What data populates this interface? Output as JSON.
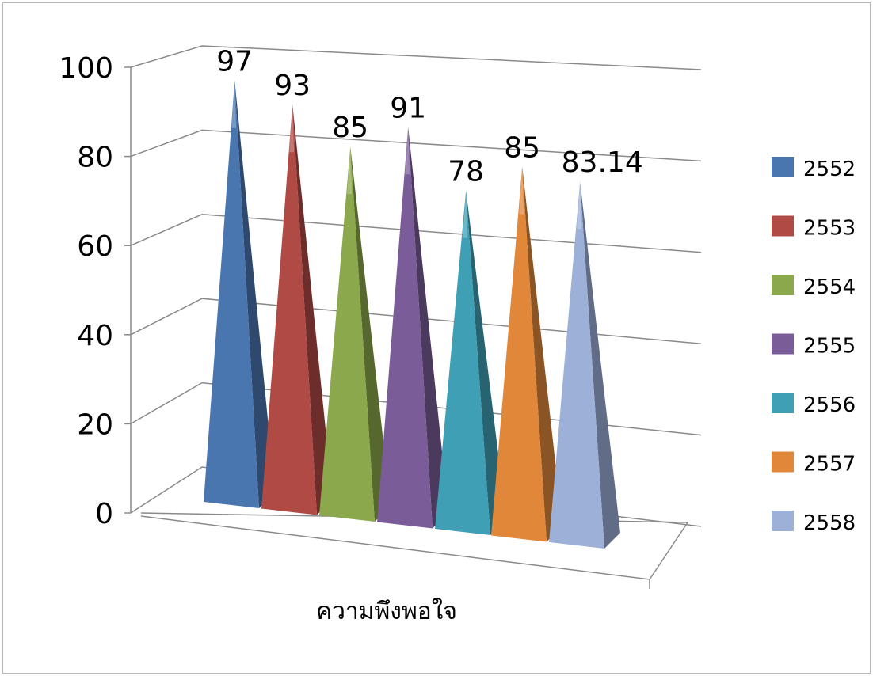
{
  "chart_data": {
    "type": "bar",
    "variant": "3d-pyramid",
    "categories": [
      "ความพึงพอใจ"
    ],
    "series": [
      {
        "name": "2552",
        "values": [
          97
        ],
        "label": "97",
        "color": "#4a76b0"
      },
      {
        "name": "2553",
        "values": [
          93
        ],
        "label": "93",
        "color": "#b04a45"
      },
      {
        "name": "2554",
        "values": [
          85
        ],
        "label": "85",
        "color": "#8ca84c"
      },
      {
        "name": "2555",
        "values": [
          91
        ],
        "label": "91",
        "color": "#7a5c98"
      },
      {
        "name": "2556",
        "values": [
          78
        ],
        "label": "78",
        "color": "#3f9fb4"
      },
      {
        "name": "2557",
        "values": [
          85
        ],
        "label": "85",
        "color": "#e0873a"
      },
      {
        "name": "2558",
        "values": [
          83.14
        ],
        "label": "83.14",
        "color": "#9db0d8"
      }
    ],
    "y_ticks": [
      "0",
      "20",
      "40",
      "60",
      "80",
      "100"
    ],
    "ylim": [
      0,
      100
    ],
    "grid": true,
    "legend_position": "right"
  }
}
